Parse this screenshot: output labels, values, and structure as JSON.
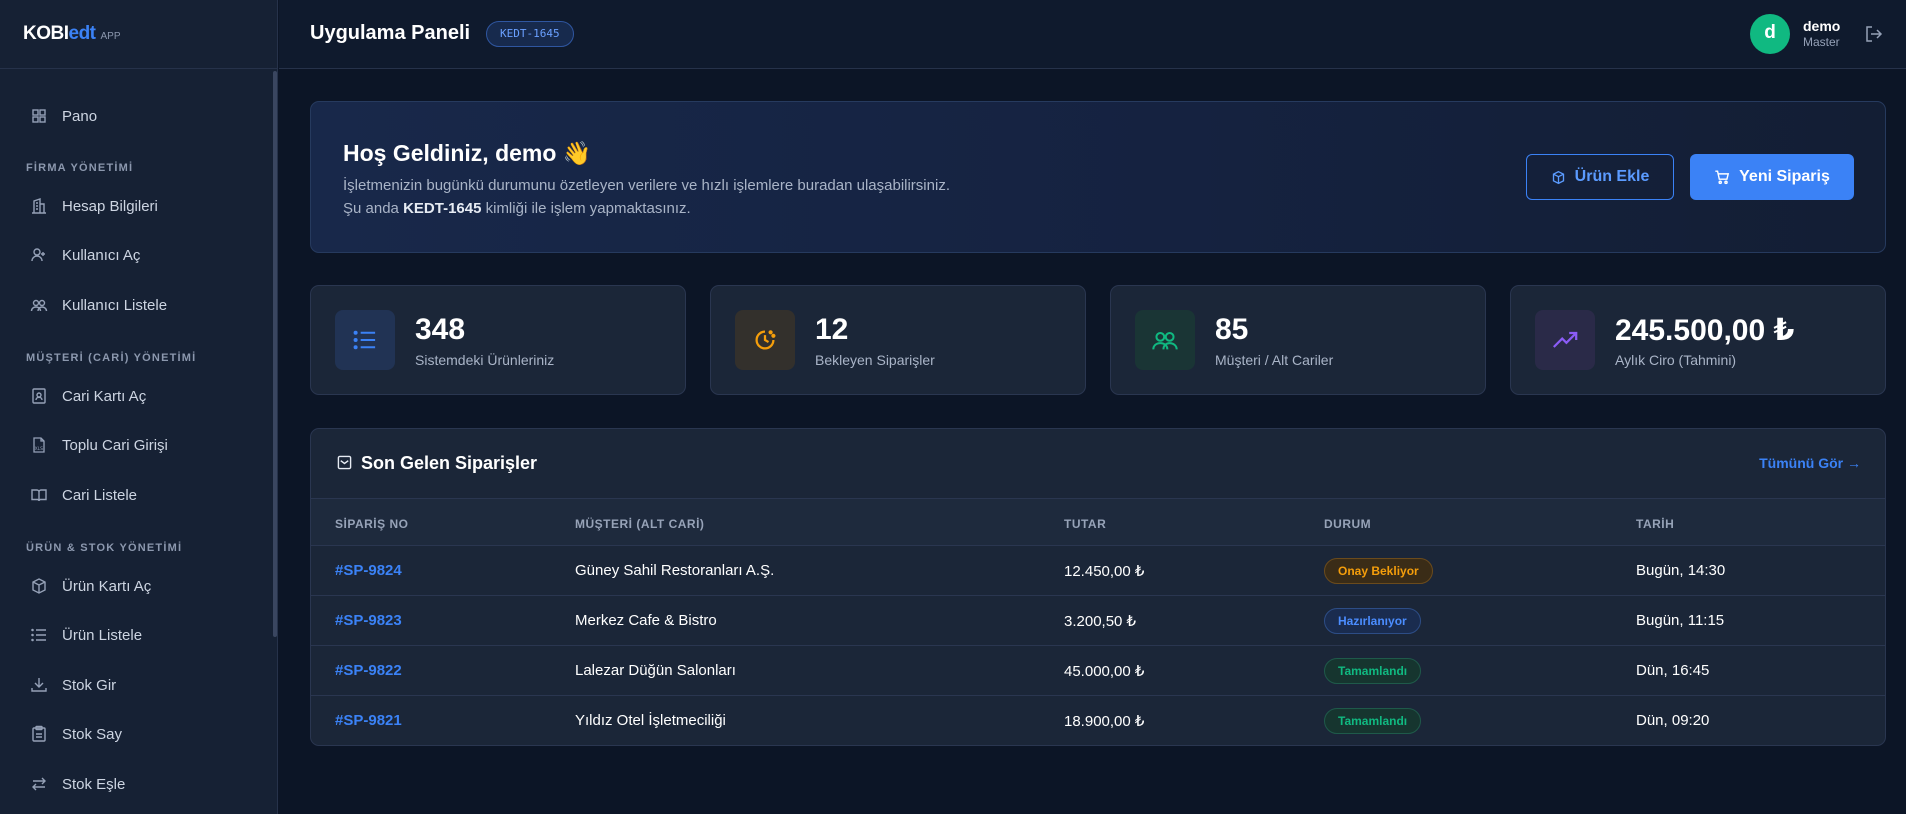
{
  "brand": {
    "part1": "KOBI",
    "part2": "edt",
    "suffix": "APP"
  },
  "sidebar": {
    "top_item": {
      "label": "Pano",
      "icon": "grid-icon"
    },
    "sections": [
      {
        "title": "FİRMA YÖNETİMİ",
        "items": [
          {
            "label": "Hesap Bilgileri",
            "icon": "building-icon"
          },
          {
            "label": "Kullanıcı Aç",
            "icon": "user-plus-icon"
          },
          {
            "label": "Kullanıcı Listele",
            "icon": "users-icon"
          }
        ]
      },
      {
        "title": "MÜŞTERİ (CARİ) YÖNETİMİ",
        "items": [
          {
            "label": "Cari Kartı Aç",
            "icon": "contact-card-icon"
          },
          {
            "label": "Toplu Cari Girişi",
            "icon": "xls-file-icon"
          },
          {
            "label": "Cari Listele",
            "icon": "book-icon"
          }
        ]
      },
      {
        "title": "ÜRÜN & STOK YÖNETİMİ",
        "items": [
          {
            "label": "Ürün Kartı Aç",
            "icon": "box-icon"
          },
          {
            "label": "Ürün Listele",
            "icon": "list-icon"
          },
          {
            "label": "Stok Gir",
            "icon": "download-icon"
          },
          {
            "label": "Stok Say",
            "icon": "clipboard-icon"
          },
          {
            "label": "Stok Eşle",
            "icon": "swap-icon"
          }
        ]
      }
    ]
  },
  "header": {
    "title": "Uygulama Paneli",
    "code": "KEDT-1645"
  },
  "user": {
    "initial": "d",
    "name": "demo",
    "role": "Master"
  },
  "welcome": {
    "title": "Hoş Geldiniz, demo 👋",
    "line1": "İşletmenizin bugünkü durumunu özetleyen verilere ve hızlı işlemlere buradan ulaşabilirsiniz.",
    "line2_prefix": "Şu anda ",
    "line2_code": "KEDT-1645",
    "line2_suffix": " kimliği ile işlem yapmaktasınız.",
    "btn_add_product": "Ürün Ekle",
    "btn_new_order": "Yeni Sipariş"
  },
  "stats": [
    {
      "value": "348",
      "label": "Sistemdeki Ürünleriniz",
      "icon": "list-icon",
      "color": "#3b82f6"
    },
    {
      "value": "12",
      "label": "Bekleyen Siparişler",
      "icon": "clock-icon",
      "color": "#f59e0b"
    },
    {
      "value": "85",
      "label": "Müşteri / Alt Cariler",
      "icon": "users-icon",
      "color": "#10b981"
    },
    {
      "value": "245.500,00 ₺",
      "label": "Aylık Ciro (Tahmini)",
      "icon": "trend-up-icon",
      "color": "#8b5cf6"
    }
  ],
  "orders": {
    "title": "Son Gelen Siparişler",
    "view_all": "Tümünü Gör →",
    "columns": [
      "SİPARİŞ NO",
      "MÜŞTERİ (ALT CARİ)",
      "TUTAR",
      "DURUM",
      "TARİH"
    ],
    "rows": [
      {
        "no": "#SP-9824",
        "customer": "Güney Sahil Restoranları A.Ş.",
        "amount": "12.450,00 ₺",
        "status": "Onay Bekliyor",
        "status_type": "warn",
        "date": "Bugün, 14:30"
      },
      {
        "no": "#SP-9823",
        "customer": "Merkez Cafe & Bistro",
        "amount": "3.200,50 ₺",
        "status": "Hazırlanıyor",
        "status_type": "info",
        "date": "Bugün, 11:15"
      },
      {
        "no": "#SP-9822",
        "customer": "Lalezar Düğün Salonları",
        "amount": "45.000,00 ₺",
        "status": "Tamamlandı",
        "status_type": "ok",
        "date": "Dün, 16:45"
      },
      {
        "no": "#SP-9821",
        "customer": "Yıldız Otel İşletmeciliği",
        "amount": "18.900,00 ₺",
        "status": "Tamamlandı",
        "status_type": "ok",
        "date": "Dün, 09:20"
      }
    ]
  }
}
